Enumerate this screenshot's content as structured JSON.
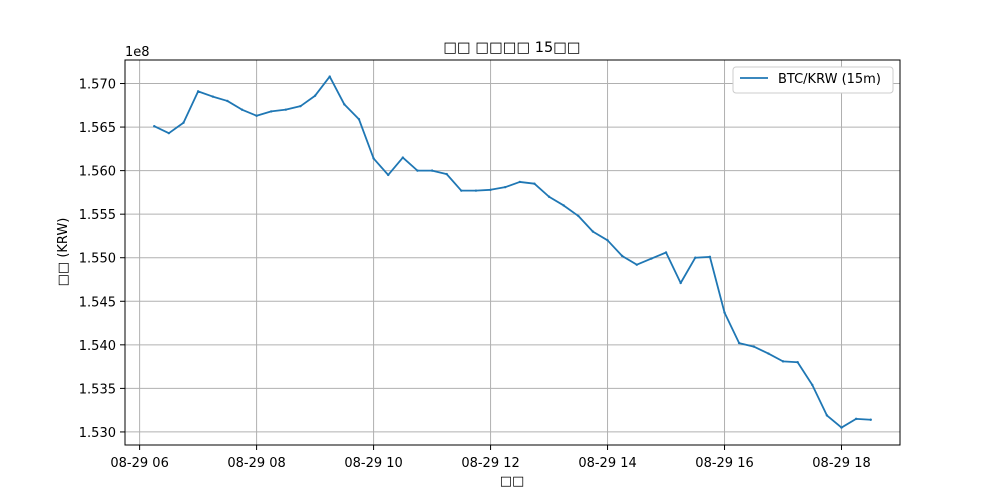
{
  "chart_data": {
    "type": "line",
    "title": "□□ □□□□ 15□□",
    "xlabel": "□□",
    "ylabel": "□□ (KRW)",
    "y_offset_label": "1e8",
    "x_start": "2025-08-29 06:00",
    "x_tick_labels": [
      "08-29 06",
      "08-29 08",
      "08-29 10",
      "08-29 12",
      "08-29 14",
      "08-29 16",
      "08-29 18"
    ],
    "y_tick_labels": [
      "1.530",
      "1.535",
      "1.540",
      "1.545",
      "1.550",
      "1.555",
      "1.560",
      "1.565",
      "1.570"
    ],
    "xlim": [
      "08-29 05:45",
      "08-29 19:00"
    ],
    "ylim": [
      1.5285,
      1.5727
    ],
    "y_unit_multiplier": 100000000,
    "grid": true,
    "legend_position": "top-right",
    "series": [
      {
        "name": "BTC/KRW (15m)",
        "color": "#1f77b4",
        "points": [
          [
            "08-29 06:15",
            1.5651
          ],
          [
            "08-29 06:30",
            1.5643
          ],
          [
            "08-29 06:45",
            1.5655
          ],
          [
            "08-29 07:00",
            1.5691
          ],
          [
            "08-29 07:15",
            1.5685
          ],
          [
            "08-29 07:30",
            1.568
          ],
          [
            "08-29 07:45",
            1.567
          ],
          [
            "08-29 08:00",
            1.5663
          ],
          [
            "08-29 08:15",
            1.5668
          ],
          [
            "08-29 08:30",
            1.567
          ],
          [
            "08-29 08:45",
            1.5674
          ],
          [
            "08-29 09:00",
            1.5686
          ],
          [
            "08-29 09:15",
            1.5708
          ],
          [
            "08-29 09:30",
            1.5676
          ],
          [
            "08-29 09:45",
            1.5659
          ],
          [
            "08-29 10:00",
            1.5614
          ],
          [
            "08-29 10:15",
            1.5595
          ],
          [
            "08-29 10:30",
            1.5615
          ],
          [
            "08-29 10:45",
            1.56
          ],
          [
            "08-29 11:00",
            1.56
          ],
          [
            "08-29 11:15",
            1.5596
          ],
          [
            "08-29 11:30",
            1.5577
          ],
          [
            "08-29 11:45",
            1.5577
          ],
          [
            "08-29 12:00",
            1.5578
          ],
          [
            "08-29 12:15",
            1.5581
          ],
          [
            "08-29 12:30",
            1.5587
          ],
          [
            "08-29 12:45",
            1.5585
          ],
          [
            "08-29 13:00",
            1.557
          ],
          [
            "08-29 13:15",
            1.556
          ],
          [
            "08-29 13:30",
            1.5548
          ],
          [
            "08-29 13:45",
            1.553
          ],
          [
            "08-29 14:00",
            1.552
          ],
          [
            "08-29 14:15",
            1.5502
          ],
          [
            "08-29 14:30",
            1.5492
          ],
          [
            "08-29 14:45",
            1.5499
          ],
          [
            "08-29 15:00",
            1.5506
          ],
          [
            "08-29 15:15",
            1.5471
          ],
          [
            "08-29 15:30",
            1.55
          ],
          [
            "08-29 15:45",
            1.5501
          ],
          [
            "08-29 16:00",
            1.5437
          ],
          [
            "08-29 16:15",
            1.5402
          ],
          [
            "08-29 16:30",
            1.5398
          ],
          [
            "08-29 16:45",
            1.539
          ],
          [
            "08-29 17:00",
            1.5381
          ],
          [
            "08-29 17:15",
            1.538
          ],
          [
            "08-29 17:30",
            1.5354
          ],
          [
            "08-29 17:45",
            1.5319
          ],
          [
            "08-29 18:00",
            1.5305
          ],
          [
            "08-29 18:15",
            1.5315
          ],
          [
            "08-29 18:30",
            1.5314
          ]
        ]
      }
    ]
  }
}
